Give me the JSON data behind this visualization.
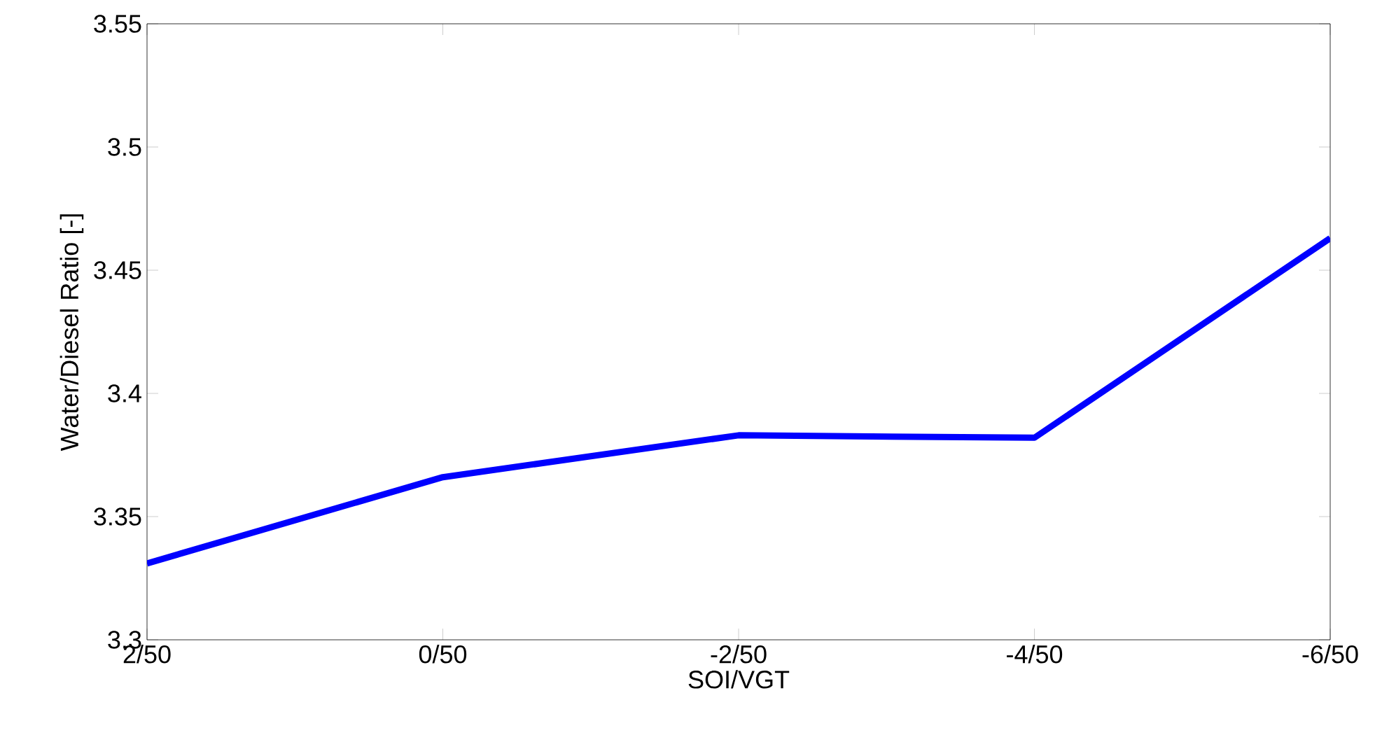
{
  "chart_data": {
    "type": "line",
    "xlabel": "SOI/VGT",
    "ylabel": "Water/Diesel Ratio [-]",
    "categories": [
      "2/50",
      "0/50",
      "-2/50",
      "-4/50",
      "-6/50"
    ],
    "series": [
      {
        "color": "#0000ff",
        "values": [
          3.331,
          3.366,
          3.383,
          3.382,
          3.463
        ]
      }
    ],
    "ylim": [
      3.3,
      3.55
    ],
    "yticks": [
      3.3,
      3.35,
      3.4,
      3.45,
      3.5,
      3.55
    ],
    "grid": false,
    "marker": "none",
    "line_style": "solid"
  }
}
